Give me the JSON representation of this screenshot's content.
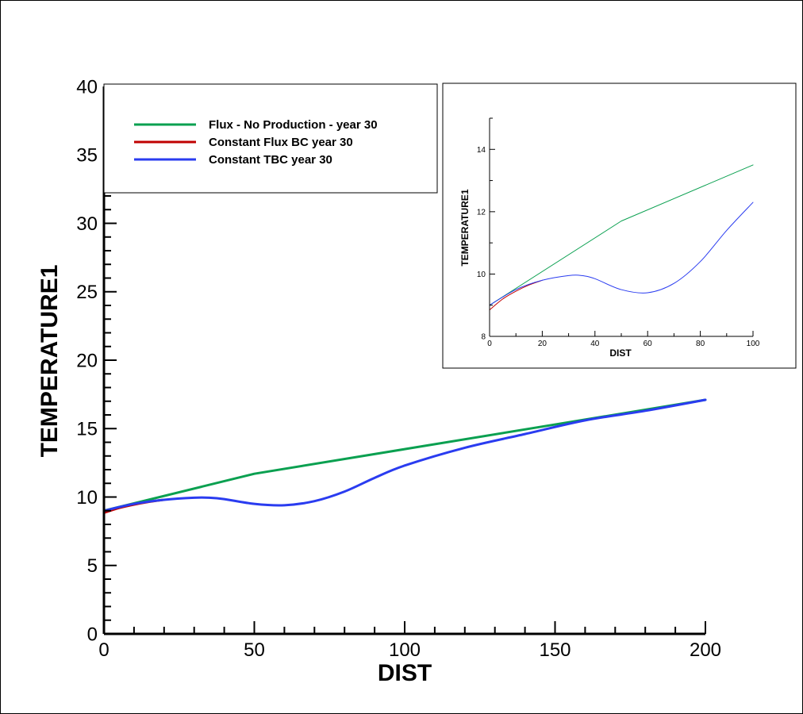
{
  "chart_data": [
    {
      "type": "line",
      "xlabel": "DIST",
      "ylabel": "TEMPERATURE1",
      "xlim": [
        0,
        200
      ],
      "ylim": [
        0,
        40
      ],
      "xticks": [
        0,
        50,
        100,
        150,
        200
      ],
      "yticks": [
        0,
        5,
        10,
        15,
        20,
        25,
        30,
        35,
        40
      ],
      "grid": false,
      "legend_position": "top-left",
      "series": [
        {
          "name": "Flux - No Production - year 30",
          "color": "#0aa050",
          "x": [
            0,
            50,
            100,
            150,
            200
          ],
          "y": [
            9.0,
            11.7,
            13.5,
            15.3,
            17.1
          ]
        },
        {
          "name": "Constant Flux BC year 30",
          "color": "#c00000",
          "x": [
            0,
            5,
            10,
            15,
            20
          ],
          "y": [
            8.85,
            9.2,
            9.45,
            9.65,
            9.8
          ]
        },
        {
          "name": "Constant TBC year 30",
          "color": "#2a3cf0",
          "x": [
            0,
            10,
            20,
            30,
            35,
            40,
            50,
            60,
            70,
            80,
            90,
            100,
            120,
            140,
            160,
            180,
            200
          ],
          "y": [
            9.0,
            9.5,
            9.8,
            9.95,
            9.95,
            9.85,
            9.5,
            9.4,
            9.7,
            10.4,
            11.4,
            12.3,
            13.6,
            14.6,
            15.6,
            16.3,
            17.1
          ]
        }
      ]
    },
    {
      "type": "line",
      "xlabel": "DIST",
      "ylabel": "TEMPERATURE1",
      "xlim": [
        0,
        100
      ],
      "ylim": [
        8,
        15
      ],
      "xticks": [
        0,
        20,
        40,
        60,
        80,
        100
      ],
      "yticks": [
        8,
        10,
        12,
        14
      ],
      "grid": false,
      "series": [
        {
          "color": "#0aa050",
          "x": [
            0,
            50,
            100
          ],
          "y": [
            9.0,
            11.7,
            13.5
          ]
        },
        {
          "color": "#c00000",
          "x": [
            0,
            5,
            10,
            15,
            20
          ],
          "y": [
            8.85,
            9.2,
            9.45,
            9.65,
            9.8
          ]
        },
        {
          "color": "#2a3cf0",
          "x": [
            0,
            10,
            20,
            30,
            35,
            40,
            50,
            60,
            70,
            80,
            90,
            100
          ],
          "y": [
            9.0,
            9.5,
            9.8,
            9.95,
            9.95,
            9.85,
            9.5,
            9.4,
            9.7,
            10.4,
            11.4,
            12.3
          ]
        }
      ]
    }
  ]
}
